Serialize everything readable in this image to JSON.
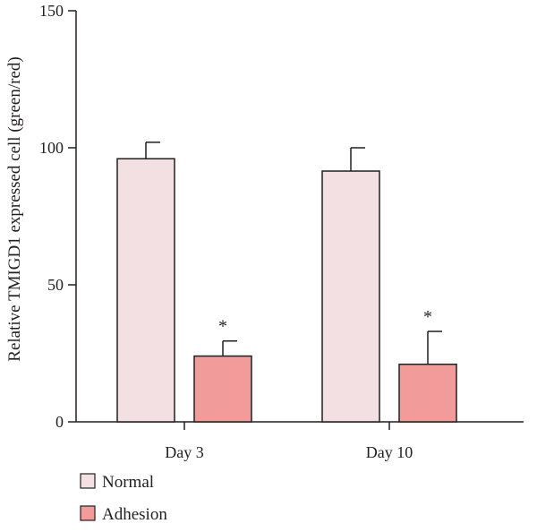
{
  "chart_data": {
    "type": "bar",
    "title": "",
    "xlabel": "",
    "ylabel": "Relative TMIGD1 expressed cell (green/red)",
    "ylim": [
      0,
      150
    ],
    "yticks": [
      0,
      50,
      100,
      150
    ],
    "categories": [
      "Day 3",
      "Day 10"
    ],
    "series": [
      {
        "name": "Normal",
        "color": "#f2e0e2",
        "values": [
          96,
          91.5
        ],
        "errors": [
          6,
          8.5
        ],
        "significance": [
          "",
          ""
        ]
      },
      {
        "name": "Adhesion",
        "color": "#f19b9b",
        "values": [
          24,
          21
        ],
        "errors": [
          5.5,
          12
        ],
        "significance": [
          "*",
          "*"
        ]
      }
    ],
    "grid": false,
    "legend_position": "bottom-left"
  }
}
